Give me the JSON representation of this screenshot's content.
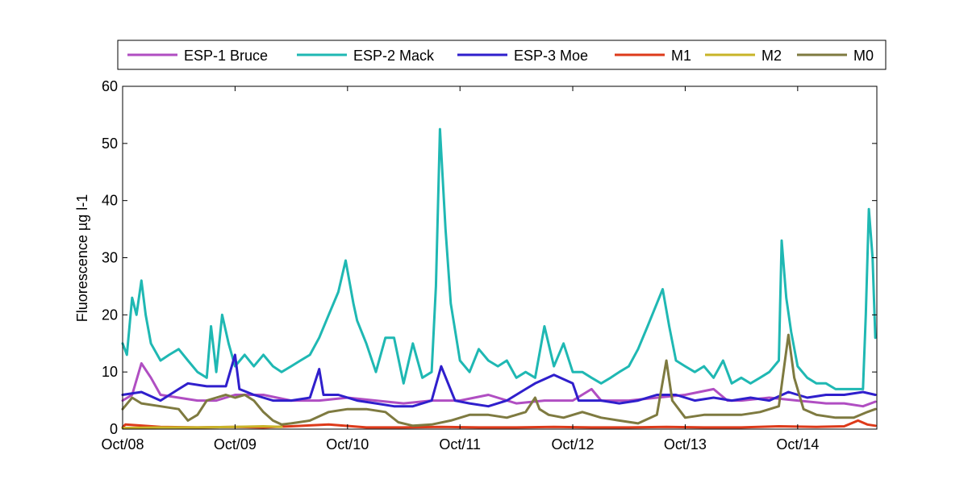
{
  "chart_data": {
    "type": "line",
    "title": "",
    "xlabel": "",
    "ylabel": "Fluorescence µg l-1",
    "ylim": [
      0,
      60
    ],
    "xlim": [
      "2008-10-01",
      "2015-06-15"
    ],
    "yticks": [
      0,
      10,
      20,
      30,
      40,
      50,
      60
    ],
    "yticklabels": [
      "0",
      "10",
      "20",
      "30",
      "40",
      "50",
      "60"
    ],
    "xticks": [
      "2008-10-01",
      "2009-10-01",
      "2010-10-01",
      "2011-10-01",
      "2012-10-01",
      "2013-10-01",
      "2014-10-01"
    ],
    "xticklabels": [
      "Oct/08",
      "Oct/09",
      "Oct/10",
      "Oct/11",
      "Oct/12",
      "Oct/13",
      "Oct/14"
    ],
    "grid": false,
    "legend_placement": "top, outside plot, horizontal",
    "series": [
      {
        "name": "ESP-1 Bruce",
        "color": "#b04ec2",
        "points": [
          [
            "2008-10-01",
            5
          ],
          [
            "2008-11-01",
            6
          ],
          [
            "2008-12-01",
            11.5
          ],
          [
            "2009-01-01",
            9
          ],
          [
            "2009-02-01",
            6
          ],
          [
            "2009-04-01",
            5.5
          ],
          [
            "2009-06-01",
            5
          ],
          [
            "2009-08-01",
            5
          ],
          [
            "2009-10-01",
            6
          ],
          [
            "2010-01-01",
            6
          ],
          [
            "2010-04-01",
            5
          ],
          [
            "2010-07-01",
            5
          ],
          [
            "2010-10-01",
            5.5
          ],
          [
            "2011-01-01",
            5
          ],
          [
            "2011-04-01",
            4.5
          ],
          [
            "2011-07-01",
            5
          ],
          [
            "2011-10-01",
            5
          ],
          [
            "2012-01-01",
            6
          ],
          [
            "2012-04-01",
            4.5
          ],
          [
            "2012-07-01",
            5
          ],
          [
            "2012-10-01",
            5
          ],
          [
            "2012-12-01",
            7
          ],
          [
            "2013-01-01",
            5
          ],
          [
            "2013-04-01",
            5
          ],
          [
            "2013-07-01",
            5.5
          ],
          [
            "2013-10-01",
            6
          ],
          [
            "2014-01-01",
            7
          ],
          [
            "2014-02-15",
            5
          ],
          [
            "2014-04-01",
            5
          ],
          [
            "2014-07-01",
            5.5
          ],
          [
            "2014-10-01",
            5
          ],
          [
            "2015-01-01",
            4.5
          ],
          [
            "2015-03-01",
            4.5
          ],
          [
            "2015-05-01",
            4
          ],
          [
            "2015-06-10",
            4.8
          ]
        ]
      },
      {
        "name": "ESP-2 Mack",
        "color": "#1fb8b3",
        "points": [
          [
            "2008-10-01",
            15
          ],
          [
            "2008-10-15",
            13
          ],
          [
            "2008-11-01",
            23
          ],
          [
            "2008-11-15",
            20
          ],
          [
            "2008-12-01",
            26
          ],
          [
            "2008-12-15",
            20
          ],
          [
            "2009-01-01",
            15
          ],
          [
            "2009-02-01",
            12
          ],
          [
            "2009-03-01",
            13
          ],
          [
            "2009-04-01",
            14
          ],
          [
            "2009-05-01",
            12
          ],
          [
            "2009-06-01",
            10
          ],
          [
            "2009-07-01",
            9
          ],
          [
            "2009-07-15",
            18
          ],
          [
            "2009-08-01",
            10
          ],
          [
            "2009-08-20",
            20
          ],
          [
            "2009-09-10",
            15
          ],
          [
            "2009-10-01",
            11
          ],
          [
            "2009-11-01",
            13
          ],
          [
            "2009-12-01",
            11
          ],
          [
            "2010-01-01",
            13
          ],
          [
            "2010-02-01",
            11
          ],
          [
            "2010-03-01",
            10
          ],
          [
            "2010-04-01",
            11
          ],
          [
            "2010-05-01",
            12
          ],
          [
            "2010-06-01",
            13
          ],
          [
            "2010-07-01",
            16
          ],
          [
            "2010-08-01",
            20
          ],
          [
            "2010-09-01",
            24
          ],
          [
            "2010-09-25",
            29.5
          ],
          [
            "2010-10-20",
            22
          ],
          [
            "2010-11-01",
            19
          ],
          [
            "2010-12-01",
            15
          ],
          [
            "2011-01-01",
            10
          ],
          [
            "2011-02-01",
            16
          ],
          [
            "2011-03-01",
            16
          ],
          [
            "2011-04-01",
            8
          ],
          [
            "2011-05-01",
            15
          ],
          [
            "2011-06-01",
            9
          ],
          [
            "2011-07-01",
            10
          ],
          [
            "2011-07-15",
            25
          ],
          [
            "2011-07-28",
            52.5
          ],
          [
            "2011-08-15",
            35
          ],
          [
            "2011-09-01",
            22
          ],
          [
            "2011-10-01",
            12
          ],
          [
            "2011-11-01",
            10
          ],
          [
            "2011-12-01",
            14
          ],
          [
            "2012-01-01",
            12
          ],
          [
            "2012-02-01",
            11
          ],
          [
            "2012-03-01",
            12
          ],
          [
            "2012-04-01",
            9
          ],
          [
            "2012-05-01",
            10
          ],
          [
            "2012-06-01",
            9
          ],
          [
            "2012-07-01",
            18
          ],
          [
            "2012-08-01",
            11
          ],
          [
            "2012-09-01",
            15
          ],
          [
            "2012-10-01",
            10
          ],
          [
            "2012-11-01",
            10
          ],
          [
            "2012-12-01",
            9
          ],
          [
            "2013-01-01",
            8
          ],
          [
            "2013-02-01",
            9
          ],
          [
            "2013-03-01",
            10
          ],
          [
            "2013-04-01",
            11
          ],
          [
            "2013-05-01",
            14
          ],
          [
            "2013-06-01",
            18
          ],
          [
            "2013-07-01",
            22
          ],
          [
            "2013-07-20",
            24.5
          ],
          [
            "2013-08-10",
            18
          ],
          [
            "2013-09-01",
            12
          ],
          [
            "2013-10-01",
            11
          ],
          [
            "2013-11-01",
            10
          ],
          [
            "2013-12-01",
            11
          ],
          [
            "2014-01-01",
            9
          ],
          [
            "2014-02-01",
            12
          ],
          [
            "2014-03-01",
            8
          ],
          [
            "2014-04-01",
            9
          ],
          [
            "2014-05-01",
            8
          ],
          [
            "2014-06-01",
            9
          ],
          [
            "2014-07-01",
            10
          ],
          [
            "2014-08-01",
            12
          ],
          [
            "2014-08-10",
            33
          ],
          [
            "2014-08-25",
            23
          ],
          [
            "2014-09-10",
            17
          ],
          [
            "2014-10-01",
            11
          ],
          [
            "2014-11-01",
            9
          ],
          [
            "2014-12-01",
            8
          ],
          [
            "2015-01-01",
            8
          ],
          [
            "2015-02-01",
            7
          ],
          [
            "2015-03-01",
            7
          ],
          [
            "2015-04-01",
            7
          ],
          [
            "2015-05-01",
            7
          ],
          [
            "2015-05-10",
            20
          ],
          [
            "2015-05-20",
            38.5
          ],
          [
            "2015-06-01",
            30
          ],
          [
            "2015-06-10",
            16
          ]
        ]
      },
      {
        "name": "ESP-3 Moe",
        "color": "#2f1fcc",
        "points": [
          [
            "2008-10-01",
            6
          ],
          [
            "2008-12-01",
            6.5
          ],
          [
            "2009-02-01",
            5
          ],
          [
            "2009-04-01",
            7
          ],
          [
            "2009-05-01",
            8
          ],
          [
            "2009-07-01",
            7.5
          ],
          [
            "2009-09-01",
            7.5
          ],
          [
            "2009-10-01",
            13
          ],
          [
            "2009-10-15",
            7
          ],
          [
            "2009-12-01",
            6
          ],
          [
            "2010-02-01",
            5
          ],
          [
            "2010-04-01",
            5
          ],
          [
            "2010-06-01",
            5.5
          ],
          [
            "2010-07-01",
            10.5
          ],
          [
            "2010-07-15",
            6
          ],
          [
            "2010-09-01",
            6
          ],
          [
            "2010-11-01",
            5
          ],
          [
            "2011-01-01",
            4.5
          ],
          [
            "2011-03-01",
            4
          ],
          [
            "2011-05-01",
            4
          ],
          [
            "2011-07-01",
            5
          ],
          [
            "2011-08-01",
            11
          ],
          [
            "2011-09-15",
            5
          ],
          [
            "2011-11-01",
            4.5
          ],
          [
            "2012-01-01",
            4
          ],
          [
            "2012-03-01",
            5
          ],
          [
            "2012-05-01",
            7
          ],
          [
            "2012-06-01",
            8
          ],
          [
            "2012-08-01",
            9.5
          ],
          [
            "2012-10-01",
            8
          ],
          [
            "2012-10-20",
            5
          ],
          [
            "2013-01-01",
            5
          ],
          [
            "2013-03-01",
            4.5
          ],
          [
            "2013-05-01",
            5
          ],
          [
            "2013-07-01",
            6
          ],
          [
            "2013-09-01",
            6
          ],
          [
            "2013-11-01",
            5
          ],
          [
            "2014-01-01",
            5.5
          ],
          [
            "2014-03-01",
            5
          ],
          [
            "2014-05-01",
            5.5
          ],
          [
            "2014-07-01",
            5
          ],
          [
            "2014-09-01",
            6.5
          ],
          [
            "2014-11-01",
            5.5
          ],
          [
            "2015-01-01",
            6
          ],
          [
            "2015-03-01",
            6
          ],
          [
            "2015-05-01",
            6.5
          ],
          [
            "2015-06-10",
            6
          ]
        ]
      },
      {
        "name": "M1",
        "color": "#dd3a1a",
        "points": [
          [
            "2008-10-01",
            0.3
          ],
          [
            "2008-10-10",
            0.8
          ],
          [
            "2009-02-01",
            0.4
          ],
          [
            "2009-06-01",
            0.3
          ],
          [
            "2009-10-01",
            0.4
          ],
          [
            "2010-01-01",
            0.3
          ],
          [
            "2010-04-01",
            0.5
          ],
          [
            "2010-08-01",
            0.8
          ],
          [
            "2010-12-01",
            0.3
          ],
          [
            "2011-04-01",
            0.3
          ],
          [
            "2011-08-01",
            0.4
          ],
          [
            "2011-12-01",
            0.3
          ],
          [
            "2012-04-01",
            0.3
          ],
          [
            "2012-08-01",
            0.4
          ],
          [
            "2012-12-01",
            0.3
          ],
          [
            "2013-04-01",
            0.3
          ],
          [
            "2013-08-01",
            0.4
          ],
          [
            "2013-12-01",
            0.3
          ],
          [
            "2014-04-01",
            0.3
          ],
          [
            "2014-08-01",
            0.5
          ],
          [
            "2014-12-01",
            0.4
          ],
          [
            "2015-03-01",
            0.5
          ],
          [
            "2015-04-15",
            1.5
          ],
          [
            "2015-05-15",
            0.8
          ],
          [
            "2015-06-10",
            0.6
          ]
        ]
      },
      {
        "name": "M2",
        "color": "#c8b428",
        "points": [
          [
            "2008-10-01",
            0.2
          ],
          [
            "2009-02-01",
            0.3
          ],
          [
            "2009-06-01",
            0.3
          ],
          [
            "2009-10-01",
            0.4
          ],
          [
            "2010-01-01",
            0.5
          ],
          [
            "2010-03-01",
            0.4
          ]
        ]
      },
      {
        "name": "M0",
        "color": "#7e7a40",
        "points": [
          [
            "2008-10-01",
            3.5
          ],
          [
            "2008-11-01",
            5.5
          ],
          [
            "2008-12-01",
            4.5
          ],
          [
            "2009-02-01",
            4
          ],
          [
            "2009-04-01",
            3.5
          ],
          [
            "2009-05-01",
            1.5
          ],
          [
            "2009-06-01",
            2.5
          ],
          [
            "2009-07-01",
            5
          ],
          [
            "2009-08-01",
            5.5
          ],
          [
            "2009-09-01",
            6
          ],
          [
            "2009-10-01",
            5.5
          ],
          [
            "2009-11-01",
            6
          ],
          [
            "2009-12-01",
            5
          ],
          [
            "2010-01-01",
            3
          ],
          [
            "2010-02-01",
            1.5
          ],
          [
            "2010-03-01",
            0.8
          ],
          [
            "2010-04-01",
            1
          ],
          [
            "2010-06-01",
            1.5
          ],
          [
            "2010-08-01",
            3
          ],
          [
            "2010-10-01",
            3.5
          ],
          [
            "2010-12-01",
            3.5
          ],
          [
            "2011-02-01",
            3
          ],
          [
            "2011-03-15",
            1.2
          ],
          [
            "2011-05-01",
            0.6
          ],
          [
            "2011-07-01",
            0.8
          ],
          [
            "2011-09-01",
            1.5
          ],
          [
            "2011-11-01",
            2.5
          ],
          [
            "2012-01-01",
            2.5
          ],
          [
            "2012-03-01",
            2
          ],
          [
            "2012-05-01",
            3
          ],
          [
            "2012-06-01",
            5.5
          ],
          [
            "2012-06-15",
            3.5
          ],
          [
            "2012-07-15",
            2.5
          ],
          [
            "2012-09-01",
            2
          ],
          [
            "2012-11-01",
            3
          ],
          [
            "2013-01-01",
            2
          ],
          [
            "2013-03-01",
            1.5
          ],
          [
            "2013-05-01",
            1
          ],
          [
            "2013-07-01",
            2.5
          ],
          [
            "2013-08-01",
            12
          ],
          [
            "2013-08-20",
            5
          ],
          [
            "2013-10-01",
            2
          ],
          [
            "2013-12-01",
            2.5
          ],
          [
            "2014-02-01",
            2.5
          ],
          [
            "2014-04-01",
            2.5
          ],
          [
            "2014-06-01",
            3
          ],
          [
            "2014-08-01",
            4
          ],
          [
            "2014-09-01",
            16.5
          ],
          [
            "2014-09-20",
            9
          ],
          [
            "2014-10-20",
            3.5
          ],
          [
            "2014-12-01",
            2.5
          ],
          [
            "2015-02-01",
            2
          ],
          [
            "2015-04-01",
            2
          ],
          [
            "2015-05-15",
            3
          ],
          [
            "2015-06-10",
            3.5
          ]
        ]
      }
    ]
  }
}
